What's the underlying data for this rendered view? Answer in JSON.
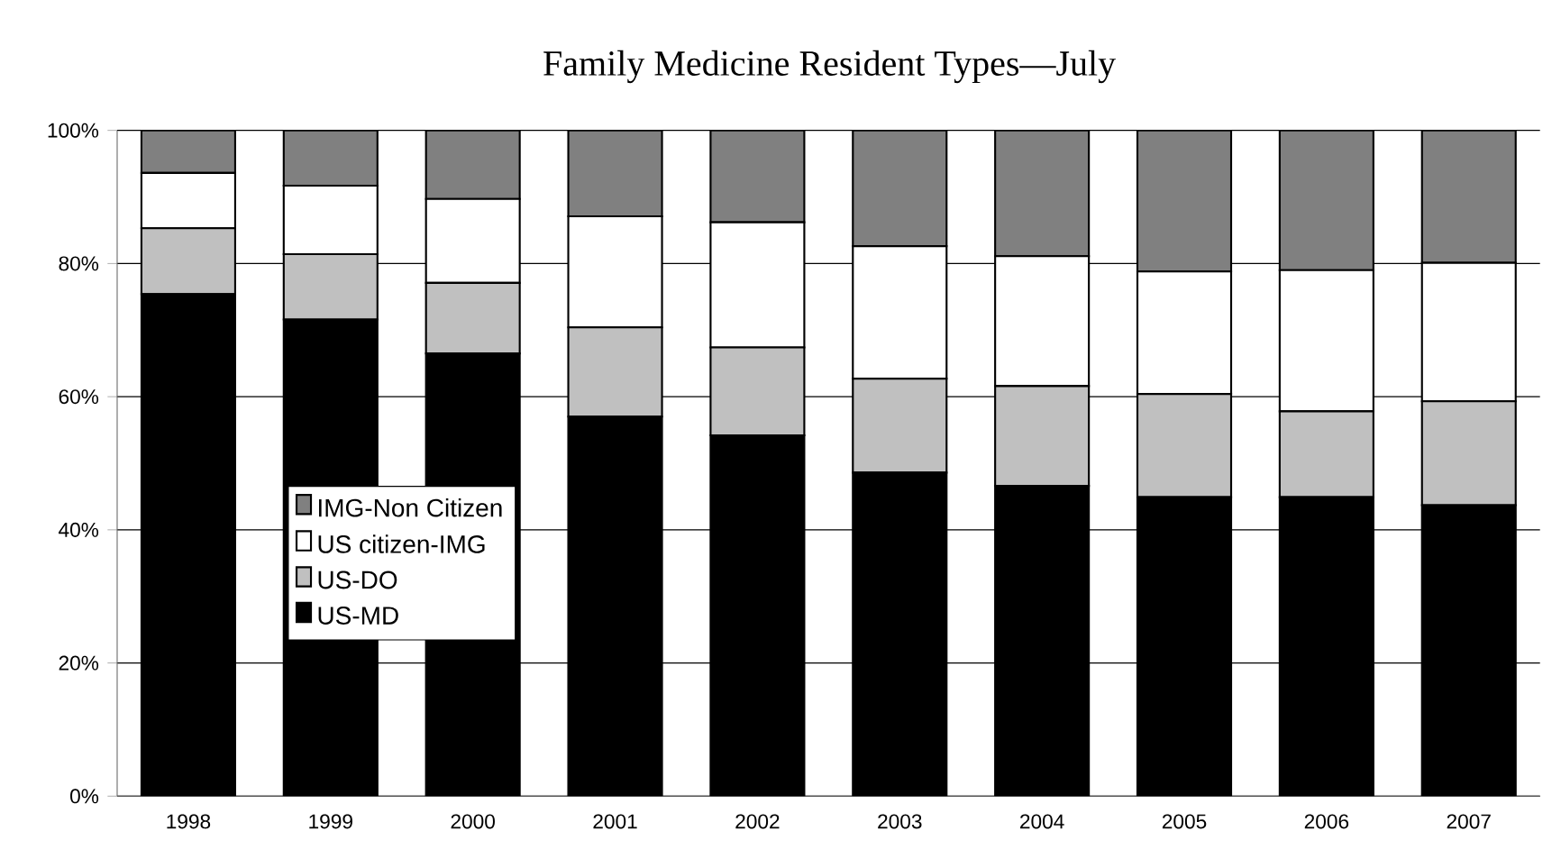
{
  "chart_data": {
    "type": "bar",
    "stacked": true,
    "title": "Family Medicine Resident Types—July",
    "categories": [
      "1998",
      "1999",
      "2000",
      "2001",
      "2002",
      "2003",
      "2004",
      "2005",
      "2006",
      "2007"
    ],
    "series": [
      {
        "name": "US-MD",
        "color": "#000000",
        "values": [
          75.4,
          71.6,
          66.5,
          57.0,
          54.2,
          48.6,
          46.6,
          44.9,
          44.9,
          43.7
        ]
      },
      {
        "name": "US-DO",
        "color": "#c0c0c0",
        "values": [
          9.9,
          9.8,
          10.6,
          13.4,
          13.2,
          14.1,
          15.0,
          15.5,
          12.9,
          15.6
        ]
      },
      {
        "name": "US citizen-IMG",
        "color": "#ffffff",
        "values": [
          8.3,
          10.3,
          12.6,
          16.7,
          18.8,
          19.9,
          19.5,
          18.4,
          21.2,
          20.8
        ]
      },
      {
        "name": "IMG-Non Citizen",
        "color": "#808080",
        "values": [
          6.4,
          8.3,
          10.3,
          12.9,
          13.8,
          17.4,
          18.9,
          21.2,
          21.0,
          19.9
        ]
      }
    ],
    "ylim": [
      0,
      100
    ],
    "yticks": [
      {
        "value": 0,
        "label": "0%"
      },
      {
        "value": 20,
        "label": "20%"
      },
      {
        "value": 40,
        "label": "40%"
      },
      {
        "value": 60,
        "label": "60%"
      },
      {
        "value": 80,
        "label": "80%"
      },
      {
        "value": 100,
        "label": "100%"
      }
    ],
    "grid": "y",
    "legend": "center left"
  }
}
